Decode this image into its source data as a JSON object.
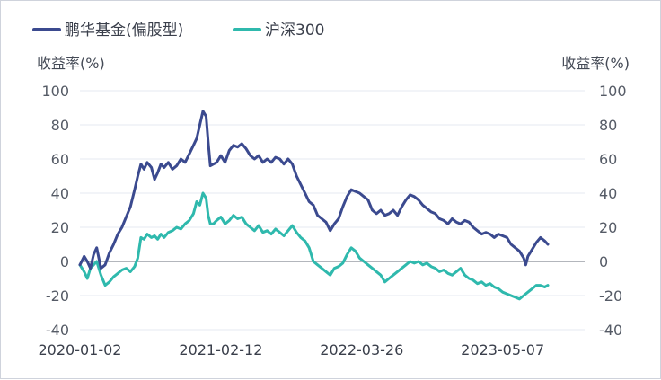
{
  "chart_data": {
    "type": "line",
    "title": "",
    "legend": {
      "position": "top-left",
      "items": [
        {
          "name": "鹏华基金(偏股型)",
          "color": "#3b4a8f"
        },
        {
          "name": "沪深300",
          "color": "#2fb9ad"
        }
      ]
    },
    "left_axis": {
      "label": "收益率(%)",
      "min": -40,
      "max": 100,
      "ticks": [
        100,
        80,
        60,
        40,
        20,
        0,
        -20,
        -40
      ]
    },
    "right_axis": {
      "label": "收益率(%)",
      "min": -40,
      "max": 100,
      "ticks": [
        100,
        80,
        60,
        40,
        20,
        0,
        -20,
        -40
      ]
    },
    "x_axis": {
      "min": 0,
      "max": 48,
      "ticks": [
        {
          "x": 0,
          "label": "2020-01-02"
        },
        {
          "x": 13.4,
          "label": "2021-02-12"
        },
        {
          "x": 26.8,
          "label": "2022-03-26"
        },
        {
          "x": 40.2,
          "label": "2023-05-07"
        }
      ]
    },
    "series": [
      {
        "name": "鹏华基金(偏股型)",
        "color": "#3b4a8f",
        "points": [
          [
            0,
            -2
          ],
          [
            0.4,
            3
          ],
          [
            0.7,
            0
          ],
          [
            1.0,
            -4
          ],
          [
            1.3,
            4
          ],
          [
            1.6,
            8
          ],
          [
            2.0,
            -4
          ],
          [
            2.4,
            -2
          ],
          [
            2.8,
            5
          ],
          [
            3.2,
            10
          ],
          [
            3.6,
            16
          ],
          [
            4.0,
            20
          ],
          [
            4.4,
            26
          ],
          [
            4.8,
            32
          ],
          [
            5.2,
            42
          ],
          [
            5.5,
            50
          ],
          [
            5.8,
            57
          ],
          [
            6.1,
            54
          ],
          [
            6.4,
            58
          ],
          [
            6.8,
            55
          ],
          [
            7.1,
            48
          ],
          [
            7.4,
            52
          ],
          [
            7.7,
            57
          ],
          [
            8.0,
            55
          ],
          [
            8.4,
            58
          ],
          [
            8.8,
            54
          ],
          [
            9.2,
            56
          ],
          [
            9.6,
            60
          ],
          [
            10.0,
            58
          ],
          [
            10.4,
            63
          ],
          [
            10.8,
            68
          ],
          [
            11.1,
            72
          ],
          [
            11.4,
            80
          ],
          [
            11.7,
            88
          ],
          [
            12.0,
            85
          ],
          [
            12.2,
            70
          ],
          [
            12.4,
            56
          ],
          [
            12.7,
            57
          ],
          [
            13.0,
            58
          ],
          [
            13.4,
            62
          ],
          [
            13.8,
            58
          ],
          [
            14.2,
            65
          ],
          [
            14.6,
            68
          ],
          [
            15.0,
            67
          ],
          [
            15.4,
            69
          ],
          [
            15.8,
            66
          ],
          [
            16.2,
            62
          ],
          [
            16.6,
            60
          ],
          [
            17.0,
            62
          ],
          [
            17.4,
            58
          ],
          [
            17.8,
            60
          ],
          [
            18.2,
            58
          ],
          [
            18.6,
            61
          ],
          [
            19.0,
            60
          ],
          [
            19.4,
            57
          ],
          [
            19.8,
            60
          ],
          [
            20.2,
            57
          ],
          [
            20.6,
            50
          ],
          [
            21.0,
            45
          ],
          [
            21.4,
            40
          ],
          [
            21.8,
            35
          ],
          [
            22.2,
            33
          ],
          [
            22.6,
            27
          ],
          [
            23.0,
            25
          ],
          [
            23.4,
            23
          ],
          [
            23.8,
            18
          ],
          [
            24.2,
            22
          ],
          [
            24.6,
            25
          ],
          [
            25.0,
            32
          ],
          [
            25.4,
            38
          ],
          [
            25.8,
            42
          ],
          [
            26.2,
            41
          ],
          [
            26.6,
            40
          ],
          [
            27.0,
            38
          ],
          [
            27.4,
            36
          ],
          [
            27.8,
            30
          ],
          [
            28.2,
            28
          ],
          [
            28.6,
            30
          ],
          [
            29.0,
            27
          ],
          [
            29.4,
            28
          ],
          [
            29.8,
            30
          ],
          [
            30.2,
            27
          ],
          [
            30.6,
            32
          ],
          [
            31.0,
            36
          ],
          [
            31.4,
            39
          ],
          [
            31.8,
            38
          ],
          [
            32.2,
            36
          ],
          [
            32.6,
            33
          ],
          [
            33.0,
            31
          ],
          [
            33.4,
            29
          ],
          [
            33.8,
            28
          ],
          [
            34.2,
            25
          ],
          [
            34.6,
            24
          ],
          [
            35.0,
            22
          ],
          [
            35.4,
            25
          ],
          [
            35.8,
            23
          ],
          [
            36.2,
            22
          ],
          [
            36.6,
            24
          ],
          [
            37.0,
            23
          ],
          [
            37.4,
            20
          ],
          [
            37.8,
            18
          ],
          [
            38.2,
            16
          ],
          [
            38.6,
            17
          ],
          [
            39.0,
            16
          ],
          [
            39.4,
            14
          ],
          [
            39.8,
            16
          ],
          [
            40.2,
            15
          ],
          [
            40.6,
            14
          ],
          [
            41.0,
            10
          ],
          [
            41.4,
            8
          ],
          [
            41.8,
            6
          ],
          [
            42.2,
            2
          ],
          [
            42.4,
            -2
          ],
          [
            42.6,
            3
          ],
          [
            43.0,
            7
          ],
          [
            43.4,
            11
          ],
          [
            43.8,
            14
          ],
          [
            44.2,
            12
          ],
          [
            44.5,
            10
          ]
        ]
      },
      {
        "name": "沪深300",
        "color": "#2fb9ad",
        "points": [
          [
            0,
            -2
          ],
          [
            0.4,
            -6
          ],
          [
            0.7,
            -10
          ],
          [
            1.0,
            -4
          ],
          [
            1.3,
            -2
          ],
          [
            1.6,
            0
          ],
          [
            2.0,
            -8
          ],
          [
            2.4,
            -14
          ],
          [
            2.8,
            -12
          ],
          [
            3.2,
            -9
          ],
          [
            3.6,
            -7
          ],
          [
            4.0,
            -5
          ],
          [
            4.4,
            -4
          ],
          [
            4.8,
            -6
          ],
          [
            5.2,
            -3
          ],
          [
            5.5,
            2
          ],
          [
            5.8,
            14
          ],
          [
            6.1,
            13
          ],
          [
            6.4,
            16
          ],
          [
            6.8,
            14
          ],
          [
            7.1,
            15
          ],
          [
            7.4,
            13
          ],
          [
            7.7,
            16
          ],
          [
            8.0,
            14
          ],
          [
            8.4,
            17
          ],
          [
            8.8,
            18
          ],
          [
            9.2,
            20
          ],
          [
            9.6,
            19
          ],
          [
            10.0,
            22
          ],
          [
            10.4,
            24
          ],
          [
            10.8,
            28
          ],
          [
            11.1,
            35
          ],
          [
            11.4,
            33
          ],
          [
            11.7,
            40
          ],
          [
            12.0,
            37
          ],
          [
            12.2,
            27
          ],
          [
            12.4,
            22
          ],
          [
            12.7,
            22
          ],
          [
            13.0,
            24
          ],
          [
            13.4,
            26
          ],
          [
            13.8,
            22
          ],
          [
            14.2,
            24
          ],
          [
            14.6,
            27
          ],
          [
            15.0,
            25
          ],
          [
            15.4,
            26
          ],
          [
            15.8,
            22
          ],
          [
            16.2,
            20
          ],
          [
            16.6,
            18
          ],
          [
            17.0,
            21
          ],
          [
            17.4,
            17
          ],
          [
            17.8,
            18
          ],
          [
            18.2,
            16
          ],
          [
            18.6,
            19
          ],
          [
            19.0,
            17
          ],
          [
            19.4,
            15
          ],
          [
            19.8,
            18
          ],
          [
            20.2,
            21
          ],
          [
            20.6,
            17
          ],
          [
            21.0,
            14
          ],
          [
            21.4,
            12
          ],
          [
            21.8,
            8
          ],
          [
            22.2,
            0
          ],
          [
            22.6,
            -2
          ],
          [
            23.0,
            -4
          ],
          [
            23.4,
            -6
          ],
          [
            23.8,
            -8
          ],
          [
            24.2,
            -4
          ],
          [
            24.6,
            -3
          ],
          [
            25.0,
            -1
          ],
          [
            25.4,
            4
          ],
          [
            25.8,
            8
          ],
          [
            26.2,
            6
          ],
          [
            26.6,
            2
          ],
          [
            27.0,
            0
          ],
          [
            27.4,
            -2
          ],
          [
            27.8,
            -4
          ],
          [
            28.2,
            -6
          ],
          [
            28.6,
            -8
          ],
          [
            29.0,
            -12
          ],
          [
            29.4,
            -10
          ],
          [
            29.8,
            -8
          ],
          [
            30.2,
            -6
          ],
          [
            30.6,
            -4
          ],
          [
            31.0,
            -2
          ],
          [
            31.4,
            0
          ],
          [
            31.8,
            -1
          ],
          [
            32.2,
            0
          ],
          [
            32.6,
            -2
          ],
          [
            33.0,
            -1
          ],
          [
            33.4,
            -3
          ],
          [
            33.8,
            -4
          ],
          [
            34.2,
            -6
          ],
          [
            34.6,
            -5
          ],
          [
            35.0,
            -7
          ],
          [
            35.4,
            -8
          ],
          [
            35.8,
            -6
          ],
          [
            36.2,
            -4
          ],
          [
            36.6,
            -8
          ],
          [
            37.0,
            -10
          ],
          [
            37.4,
            -11
          ],
          [
            37.8,
            -13
          ],
          [
            38.2,
            -12
          ],
          [
            38.6,
            -14
          ],
          [
            39.0,
            -13
          ],
          [
            39.4,
            -15
          ],
          [
            39.8,
            -16
          ],
          [
            40.2,
            -18
          ],
          [
            40.6,
            -19
          ],
          [
            41.0,
            -20
          ],
          [
            41.4,
            -21
          ],
          [
            41.8,
            -22
          ],
          [
            42.2,
            -20
          ],
          [
            42.6,
            -18
          ],
          [
            43.0,
            -16
          ],
          [
            43.4,
            -14
          ],
          [
            43.8,
            -14
          ],
          [
            44.2,
            -15
          ],
          [
            44.5,
            -14
          ]
        ]
      }
    ]
  }
}
